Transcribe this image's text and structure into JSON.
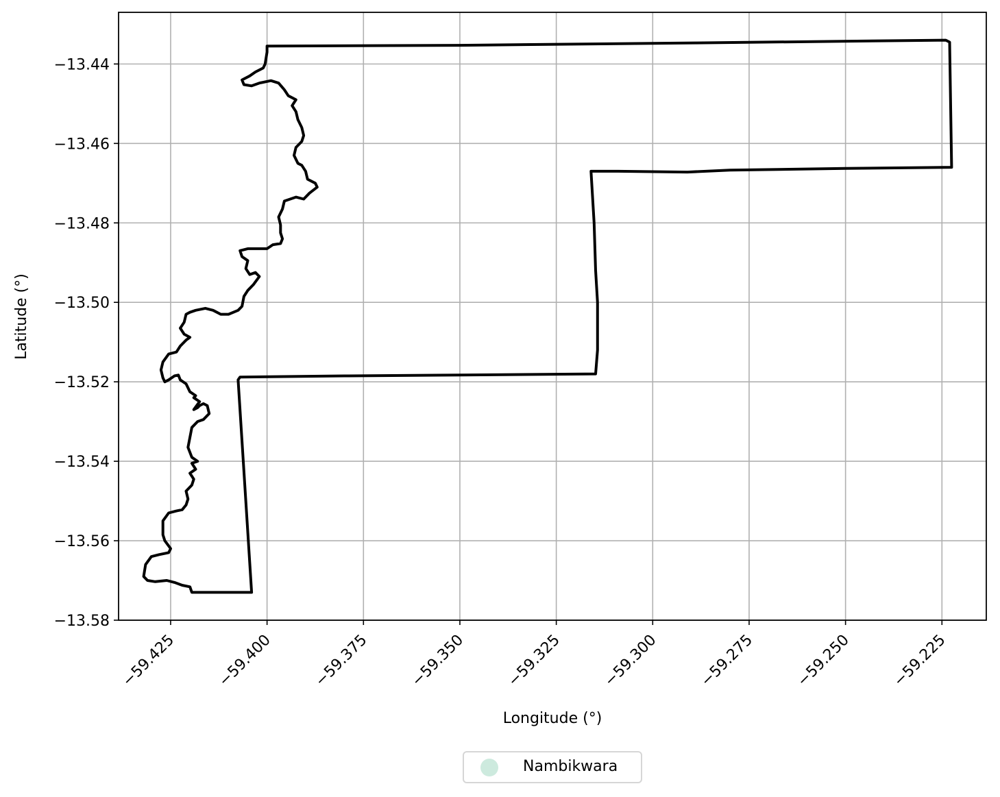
{
  "chart_data": {
    "type": "map",
    "xlabel": "Longitude (°)",
    "ylabel": "Latitude (°)",
    "xlim": [
      -59.4385,
      -59.2135
    ],
    "ylim": [
      -13.58,
      -13.427
    ],
    "xticks": [
      {
        "value": -59.425,
        "label": "−59.425"
      },
      {
        "value": -59.4,
        "label": "−59.400"
      },
      {
        "value": -59.375,
        "label": "−59.375"
      },
      {
        "value": -59.35,
        "label": "−59.350"
      },
      {
        "value": -59.325,
        "label": "−59.325"
      },
      {
        "value": -59.3,
        "label": "−59.300"
      },
      {
        "value": -59.275,
        "label": "−59.275"
      },
      {
        "value": -59.25,
        "label": "−59.250"
      },
      {
        "value": -59.225,
        "label": "−59.225"
      }
    ],
    "yticks": [
      {
        "value": -13.44,
        "label": "−13.44"
      },
      {
        "value": -13.46,
        "label": "−13.46"
      },
      {
        "value": -13.48,
        "label": "−13.48"
      },
      {
        "value": -13.5,
        "label": "−13.50"
      },
      {
        "value": -13.52,
        "label": "−13.52"
      },
      {
        "value": -13.54,
        "label": "−13.54"
      },
      {
        "value": -13.56,
        "label": "−13.56"
      },
      {
        "value": -13.58,
        "label": "−13.58"
      }
    ],
    "grid": true,
    "legend": {
      "placement": "bottom-center",
      "entries": [
        {
          "label": "Nambikwara",
          "color": "#cdeade"
        }
      ]
    },
    "boundary": [
      [
        -59.4,
        -13.4355
      ],
      [
        -59.35,
        -13.4353
      ],
      [
        -59.289,
        -13.4347
      ],
      [
        -59.224,
        -13.434
      ],
      [
        -59.223,
        -13.4345
      ],
      [
        -59.2225,
        -13.466
      ],
      [
        -59.25,
        -13.4663
      ],
      [
        -59.28,
        -13.4667
      ],
      [
        -59.291,
        -13.4672
      ],
      [
        -59.309,
        -13.467
      ],
      [
        -59.316,
        -13.467
      ],
      [
        -59.3152,
        -13.48
      ],
      [
        -59.3148,
        -13.492
      ],
      [
        -59.3143,
        -13.5
      ],
      [
        -59.3143,
        -13.512
      ],
      [
        -59.3148,
        -13.518
      ],
      [
        -59.35,
        -13.5183
      ],
      [
        -59.38,
        -13.5185
      ],
      [
        -59.407,
        -13.5188
      ],
      [
        -59.4075,
        -13.5195
      ],
      [
        -59.404,
        -13.573
      ],
      [
        -59.4195,
        -13.573
      ],
      [
        -59.42,
        -13.5716
      ],
      [
        -59.422,
        -13.5712
      ],
      [
        -59.424,
        -13.5705
      ],
      [
        -59.426,
        -13.57
      ],
      [
        -59.429,
        -13.5703
      ],
      [
        -59.431,
        -13.57
      ],
      [
        -59.432,
        -13.569
      ],
      [
        -59.4315,
        -13.566
      ],
      [
        -59.43,
        -13.564
      ],
      [
        -59.428,
        -13.5635
      ],
      [
        -59.4255,
        -13.563
      ],
      [
        -59.425,
        -13.562
      ],
      [
        -59.4265,
        -13.56
      ],
      [
        -59.427,
        -13.5585
      ],
      [
        -59.427,
        -13.555
      ],
      [
        -59.4255,
        -13.553
      ],
      [
        -59.4235,
        -13.5525
      ],
      [
        -59.422,
        -13.5522
      ],
      [
        -59.421,
        -13.551
      ],
      [
        -59.4205,
        -13.5495
      ],
      [
        -59.421,
        -13.5475
      ],
      [
        -59.4195,
        -13.546
      ],
      [
        -59.419,
        -13.5445
      ],
      [
        -59.42,
        -13.543
      ],
      [
        -59.4185,
        -13.542
      ],
      [
        -59.4195,
        -13.5405
      ],
      [
        -59.418,
        -13.54
      ],
      [
        -59.4195,
        -13.539
      ],
      [
        -59.4205,
        -13.5365
      ],
      [
        -59.42,
        -13.534
      ],
      [
        -59.4195,
        -13.5315
      ],
      [
        -59.418,
        -13.53
      ],
      [
        -59.4165,
        -13.5295
      ],
      [
        -59.415,
        -13.528
      ],
      [
        -59.4155,
        -13.526
      ],
      [
        -59.4165,
        -13.5255
      ],
      [
        -59.4175,
        -13.526
      ],
      [
        -59.418,
        -13.5265
      ],
      [
        -59.419,
        -13.527
      ],
      [
        -59.4175,
        -13.525
      ],
      [
        -59.419,
        -13.524
      ],
      [
        -59.4185,
        -13.5235
      ],
      [
        -59.42,
        -13.5225
      ],
      [
        -59.421,
        -13.5205
      ],
      [
        -59.4225,
        -13.5195
      ],
      [
        -59.423,
        -13.5183
      ],
      [
        -59.424,
        -13.5185
      ],
      [
        -59.4255,
        -13.5195
      ],
      [
        -59.4265,
        -13.52
      ],
      [
        -59.427,
        -13.519
      ],
      [
        -59.4275,
        -13.517
      ],
      [
        -59.427,
        -13.515
      ],
      [
        -59.4255,
        -13.513
      ],
      [
        -59.4235,
        -13.5125
      ],
      [
        -59.4225,
        -13.511
      ],
      [
        -59.421,
        -13.5095
      ],
      [
        -59.42,
        -13.5088
      ],
      [
        -59.4215,
        -13.508
      ],
      [
        -59.4225,
        -13.5065
      ],
      [
        -59.4215,
        -13.505
      ],
      [
        -59.421,
        -13.503
      ],
      [
        -59.42,
        -13.5025
      ],
      [
        -59.4185,
        -13.502
      ],
      [
        -59.416,
        -13.5015
      ],
      [
        -59.414,
        -13.502
      ],
      [
        -59.412,
        -13.503
      ],
      [
        -59.41,
        -13.503
      ],
      [
        -59.4075,
        -13.502
      ],
      [
        -59.4065,
        -13.501
      ],
      [
        -59.406,
        -13.4985
      ],
      [
        -59.405,
        -13.497
      ],
      [
        -59.4035,
        -13.4955
      ],
      [
        -59.402,
        -13.4935
      ],
      [
        -59.403,
        -13.4925
      ],
      [
        -59.4045,
        -13.493
      ],
      [
        -59.4055,
        -13.4915
      ],
      [
        -59.405,
        -13.4895
      ],
      [
        -59.4065,
        -13.4885
      ],
      [
        -59.407,
        -13.487
      ],
      [
        -59.405,
        -13.4865
      ],
      [
        -59.4,
        -13.4865
      ],
      [
        -59.3985,
        -13.4855
      ],
      [
        -59.3965,
        -13.4852
      ],
      [
        -59.396,
        -13.484
      ],
      [
        -59.3965,
        -13.4825
      ],
      [
        -59.3965,
        -13.4805
      ],
      [
        -59.397,
        -13.4785
      ],
      [
        -59.396,
        -13.4765
      ],
      [
        -59.3955,
        -13.4745
      ],
      [
        -59.394,
        -13.474
      ],
      [
        -59.3925,
        -13.4735
      ],
      [
        -59.3905,
        -13.474
      ],
      [
        -59.389,
        -13.4725
      ],
      [
        -59.387,
        -13.471
      ],
      [
        -59.3875,
        -13.47
      ],
      [
        -59.3895,
        -13.469
      ],
      [
        -59.39,
        -13.467
      ],
      [
        -59.391,
        -13.4655
      ],
      [
        -59.392,
        -13.465
      ],
      [
        -59.393,
        -13.463
      ],
      [
        -59.3925,
        -13.461
      ],
      [
        -59.391,
        -13.4595
      ],
      [
        -59.3905,
        -13.458
      ],
      [
        -59.391,
        -13.456
      ],
      [
        -59.392,
        -13.454
      ],
      [
        -59.3925,
        -13.452
      ],
      [
        -59.3935,
        -13.4505
      ],
      [
        -59.3925,
        -13.449
      ],
      [
        -59.3945,
        -13.448
      ],
      [
        -59.3955,
        -13.4465
      ],
      [
        -59.397,
        -13.4448
      ],
      [
        -59.399,
        -13.4442
      ],
      [
        -59.402,
        -13.4448
      ],
      [
        -59.404,
        -13.4455
      ],
      [
        -59.406,
        -13.4452
      ],
      [
        -59.4065,
        -13.444
      ],
      [
        -59.4045,
        -13.443
      ],
      [
        -59.403,
        -13.442
      ],
      [
        -59.401,
        -13.441
      ],
      [
        -59.4005,
        -13.44
      ],
      [
        -59.4,
        -13.437
      ],
      [
        -59.4,
        -13.4355
      ]
    ]
  }
}
